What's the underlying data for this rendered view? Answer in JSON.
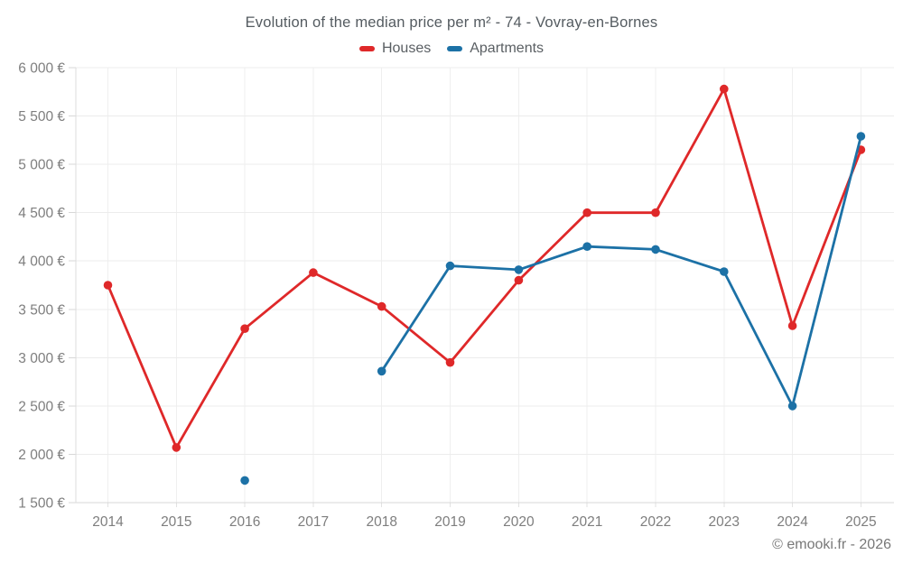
{
  "header": {
    "title": "Evolution of the median price per m² - 74 - Vovray-en-Bornes"
  },
  "footer": {
    "credit": "© emooki.fr - 2026"
  },
  "chart_data": {
    "type": "line",
    "title": "Evolution of the median price per m² - 74 - Vovray-en-Bornes",
    "x": [
      2014,
      2015,
      2016,
      2017,
      2018,
      2019,
      2020,
      2021,
      2022,
      2023,
      2024,
      2025
    ],
    "xtick_labels": [
      "2014",
      "2015",
      "2016",
      "2017",
      "2018",
      "2019",
      "2020",
      "2021",
      "2022",
      "2023",
      "2024",
      "2025"
    ],
    "series": [
      {
        "name": "Houses",
        "color": "#df2829",
        "values": [
          3750,
          2070,
          3300,
          3880,
          3530,
          2950,
          3800,
          4500,
          4500,
          5780,
          3330,
          5150
        ]
      },
      {
        "name": "Apartments",
        "color": "#1c71a6",
        "values": [
          null,
          null,
          1730,
          null,
          2860,
          3950,
          3910,
          4150,
          4120,
          3890,
          2500,
          5290
        ]
      }
    ],
    "ylim": [
      1500,
      6000
    ],
    "ytick_step": 500,
    "ytick_labels": [
      "1 500 €",
      "2 000 €",
      "2 500 €",
      "3 000 €",
      "3 500 €",
      "4 000 €",
      "4 500 €",
      "5 000 €",
      "5 500 €",
      "6 000 €"
    ],
    "currency_suffix": " €",
    "grid": true,
    "legend_position": "top"
  }
}
